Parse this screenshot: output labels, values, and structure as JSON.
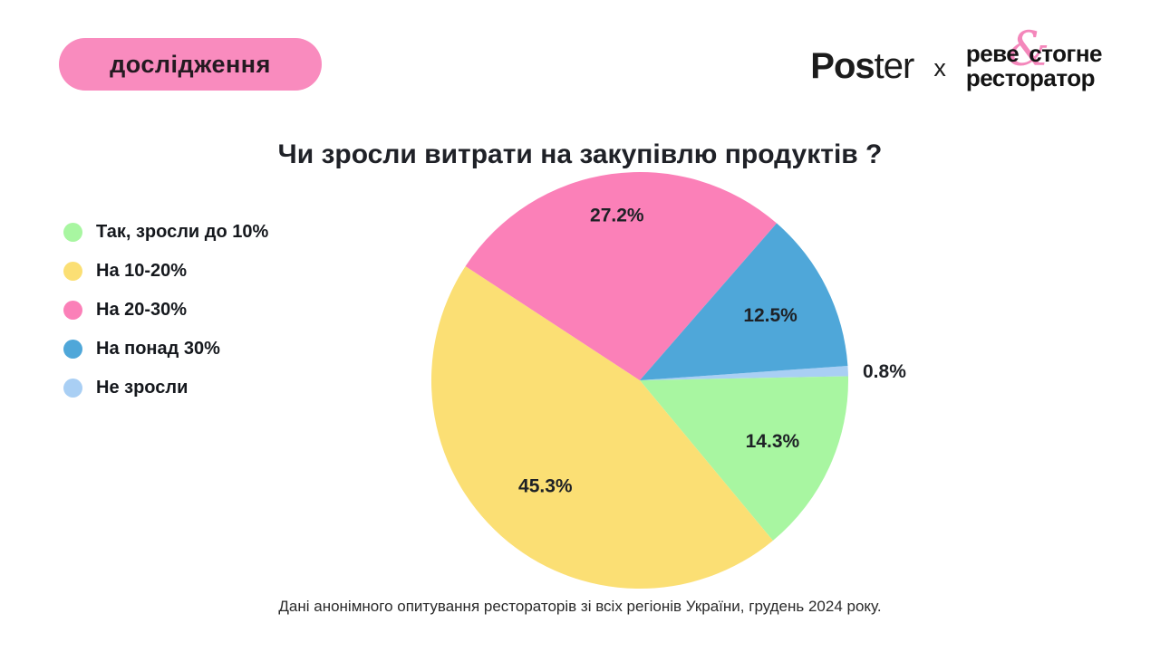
{
  "badge": {
    "label": "дослідження"
  },
  "header": {
    "poster": {
      "bold": "Pos",
      "rest": "ter"
    },
    "collab_x": "x",
    "partner": {
      "line1_left": "реве",
      "amp": "&",
      "line1_right": "стогне",
      "line2": "ресторатор"
    }
  },
  "title": "Чи зросли витрати на закупівлю продуктів ?",
  "chart_data": {
    "type": "pie",
    "title": "Чи зросли витрати на закупівлю продуктів ?",
    "value_suffix": "%",
    "legend_position": "left",
    "slices": [
      {
        "label": "Так, зросли до 10%",
        "value": 14.3,
        "color": "#A8F6A1"
      },
      {
        "label": "На 10-20%",
        "value": 45.3,
        "color": "#FBDF74"
      },
      {
        "label": "На 20-30%",
        "value": 27.2,
        "color": "#FB80B8"
      },
      {
        "label": "На понад 30%",
        "value": 12.5,
        "color": "#4FA7D9"
      },
      {
        "label": "Не зросли",
        "value": 0.8,
        "color": "#A9CFF4"
      }
    ]
  },
  "footer": {
    "text": "Дані анонімного опитування рестораторів зі всіх регіонів України, грудень 2024 року."
  },
  "colors": {
    "badge_bg": "#F98BBE",
    "accent_pink": "#F487BB",
    "text": "#1F2127"
  }
}
